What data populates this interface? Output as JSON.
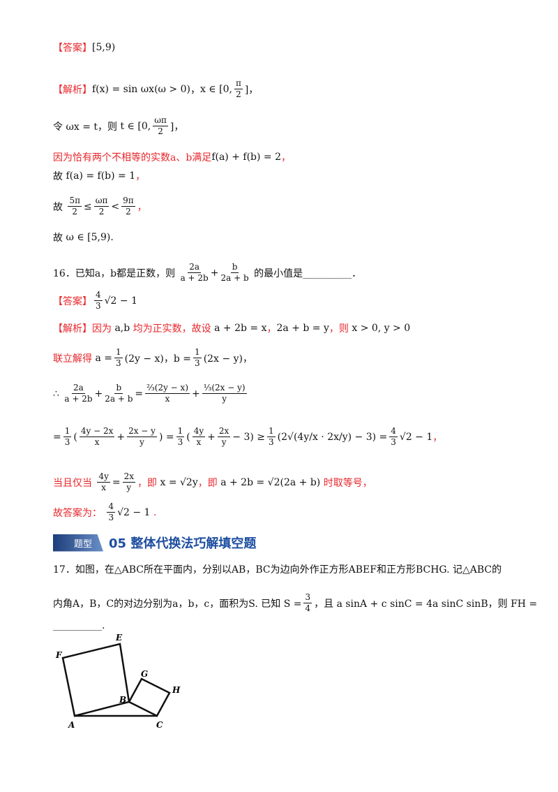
{
  "lines": [
    {
      "segments": [
        {
          "text": "【答案】",
          "color": "red"
        },
        {
          "text": "[5,9)"
        }
      ]
    },
    {
      "segments": [
        {
          "text": "【解析】",
          "color": "red"
        },
        {
          "text": "f(x) = sin ωx(ω > 0)"
        },
        {
          "text": "，"
        },
        {
          "text": "x ∈ [0,"
        },
        {
          "num": "π",
          "den": "2"
        },
        {
          "text": "]，"
        }
      ]
    },
    {
      "segments": [
        {
          "text": "令 ωx = t，则 "
        },
        {
          "text": "t ∈ [0,"
        },
        {
          "num": "ωπ",
          "den": "2"
        },
        {
          "text": "]，"
        }
      ]
    },
    {
      "segments": [
        {
          "text": "因为恰有两个不相等的实数a、b满足",
          "color": "red"
        },
        {
          "text": "f(a) + f(b) = 2"
        },
        {
          "text": "，",
          "color": "red"
        }
      ]
    },
    {
      "segments": [
        {
          "text": "故 "
        },
        {
          "text": "f(a) = f(b) = 1"
        },
        {
          "text": "，",
          "color": "red"
        }
      ]
    },
    {
      "segments": [
        {
          "text": "故 "
        },
        {
          "num": "5π",
          "den": "2"
        },
        {
          "text": "≤"
        },
        {
          "num": "ωπ",
          "den": "2"
        },
        {
          "text": "<"
        },
        {
          "num": "9π",
          "den": "2"
        },
        {
          "text": "，",
          "color": "red"
        }
      ]
    },
    {
      "segments": [
        {
          "text": "故 "
        },
        {
          "text": "ω ∈ [5,9)."
        }
      ]
    },
    {
      "segments": [
        {
          "text": "16．已知a，b都是正数，则 "
        },
        {
          "num": "2a",
          "den": "a + 2b"
        },
        {
          "text": "+"
        },
        {
          "num": "b",
          "den": "2a + b"
        },
        {
          "text": " 的最小值是__________．"
        }
      ]
    },
    {
      "segments": [
        {
          "text": "【答案】",
          "color": "red"
        },
        {
          "num": "4",
          "den": "3"
        },
        {
          "text": "√2 − 1"
        }
      ]
    },
    {
      "segments": [
        {
          "text": "【解析】因为 ",
          "color": "red"
        },
        {
          "text": "a,b"
        },
        {
          "text": " 均为正实数，故设 ",
          "color": "red"
        },
        {
          "text": "a + 2b = x"
        },
        {
          "text": "，",
          "color": "red"
        },
        {
          "text": "2a + b = y"
        },
        {
          "text": "，则 ",
          "color": "red"
        },
        {
          "text": "x > 0, y > 0"
        }
      ]
    },
    {
      "segments": [
        {
          "text": "联立解得 ",
          "color": "red"
        },
        {
          "text": "a ="
        },
        {
          "num": "1",
          "den": "3"
        },
        {
          "text": "(2y − x)，b ="
        },
        {
          "num": "1",
          "den": "3"
        },
        {
          "text": "(2x − y)，"
        }
      ]
    },
    {
      "segments": [
        {
          "text": "∴ "
        },
        {
          "num": "2a",
          "den": "a + 2b"
        },
        {
          "text": "+"
        },
        {
          "num": "b",
          "den": "2a + b"
        },
        {
          "text": "="
        },
        {
          "num": "⅔(2y − x)",
          "den": "x"
        },
        {
          "text": "+"
        },
        {
          "num": "⅓(2x − y)",
          "den": "y"
        }
      ]
    },
    {
      "segments": [
        {
          "text": "="
        },
        {
          "num": "1",
          "den": "3"
        },
        {
          "text": "("
        },
        {
          "num": "4y − 2x",
          "den": "x"
        },
        {
          "text": "+"
        },
        {
          "num": "2x − y",
          "den": "y"
        },
        {
          "text": ") ="
        },
        {
          "num": "1",
          "den": "3"
        },
        {
          "text": "("
        },
        {
          "num": "4y",
          "den": "x"
        },
        {
          "text": "+"
        },
        {
          "num": "2x",
          "den": "y"
        },
        {
          "text": "− 3) ≥"
        },
        {
          "num": "1",
          "den": "3"
        },
        {
          "text": "(2√(4y/x · 2x/y) − 3) ="
        },
        {
          "num": "4",
          "den": "3"
        },
        {
          "text": "√2 − 1"
        },
        {
          "text": "，",
          "color": "red"
        }
      ]
    },
    {
      "segments": [
        {
          "text": "当且仅当 ",
          "color": "red"
        },
        {
          "num": "4y",
          "den": "x"
        },
        {
          "text": "="
        },
        {
          "num": "2x",
          "den": "y"
        },
        {
          "text": "，即 ",
          "color": "red"
        },
        {
          "text": "x = √2y"
        },
        {
          "text": "，即 ",
          "color": "red"
        },
        {
          "text": "a + 2b = √2(2a + b)"
        },
        {
          "text": " 时取等号，",
          "color": "red"
        }
      ]
    },
    {
      "segments": [
        {
          "text": "故答案为： ",
          "color": "red"
        },
        {
          "num": "4",
          "den": "3"
        },
        {
          "text": "√2 − 1"
        },
        {
          "text": " .",
          "color": "red"
        }
      ]
    },
    {
      "segments": [
        {
          "text": "17．如图，在△ABC所在平面内，分别以AB，BC为边向外作正方形ABEF和正方形BCHG. 记△ABC的"
        }
      ]
    },
    {
      "segments": [
        {
          "text": "内角A，B，C的对边分别为a，b，c，面积为S. 已知 S ="
        },
        {
          "num": "3",
          "den": "4"
        },
        {
          "text": "，且 a sinA + c sinC = 4a sinC sinB，则 FH ="
        }
      ]
    },
    {
      "segments": [
        {
          "text": "__________."
        }
      ]
    }
  ],
  "heading": {
    "badge": "题型",
    "title": "05  整体代换法巧解填空题"
  },
  "figure": {
    "labels": [
      "F",
      "E",
      "G",
      "H",
      "B",
      "A",
      "C"
    ]
  }
}
